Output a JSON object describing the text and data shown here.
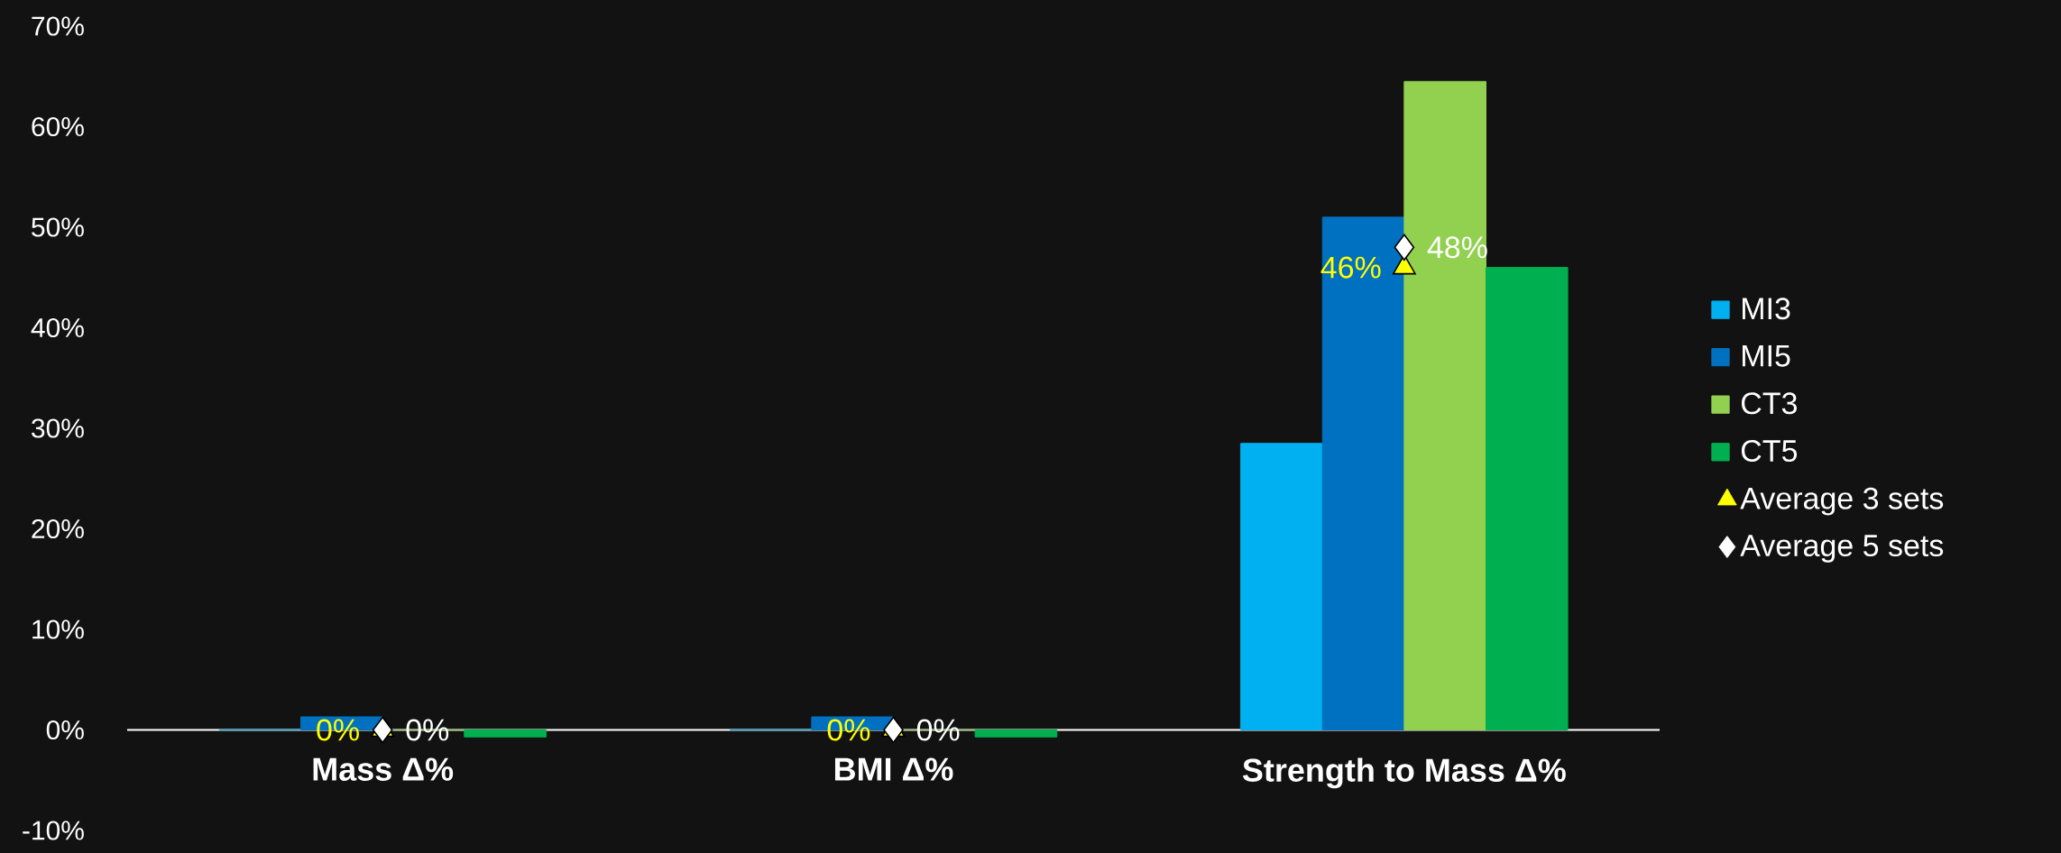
{
  "chart_data": {
    "type": "bar",
    "categories": [
      "Mass Δ%",
      "BMI Δ%",
      "Strength to Mass Δ%"
    ],
    "ylim": [
      -10,
      70
    ],
    "yticks": [
      {
        "value": -10,
        "label": "-10%"
      },
      {
        "value": 0,
        "label": "0%"
      },
      {
        "value": 10,
        "label": "10%"
      },
      {
        "value": 20,
        "label": "20%"
      },
      {
        "value": 30,
        "label": "30%"
      },
      {
        "value": 40,
        "label": "40%"
      },
      {
        "value": 50,
        "label": "50%"
      },
      {
        "value": 60,
        "label": "60%"
      },
      {
        "value": 70,
        "label": "70%"
      }
    ],
    "legend": "right",
    "series": [
      {
        "name": "MI3",
        "color": "#00b0f0",
        "values": [
          0,
          0,
          28.5
        ]
      },
      {
        "name": "MI5",
        "color": "#0070c0",
        "values": [
          1.3,
          1.3,
          51
        ]
      },
      {
        "name": "CT3",
        "color": "#92d050",
        "values": [
          0,
          0,
          64.5
        ]
      },
      {
        "name": "CT5",
        "color": "#00b050",
        "values": [
          -0.7,
          -0.7,
          46
        ]
      },
      {
        "name": "Average 3 sets",
        "type": "scatter",
        "marker": "triangle",
        "color": "#ffff00",
        "x": [
          "Mass Δ%",
          "BMI Δ%",
          "Strength to Mass Δ%"
        ],
        "values": [
          0,
          0,
          46
        ],
        "value_labels": [
          "0%",
          "0%",
          "46%"
        ]
      },
      {
        "name": "Average 5 sets",
        "type": "scatter",
        "marker": "diamond",
        "color": "#ffffff",
        "x": [
          "Mass Δ%",
          "BMI Δ%",
          "Strength to Mass Δ%"
        ],
        "values": [
          0,
          0,
          48
        ],
        "value_labels": [
          "0%",
          "0%",
          "48%"
        ]
      }
    ]
  }
}
